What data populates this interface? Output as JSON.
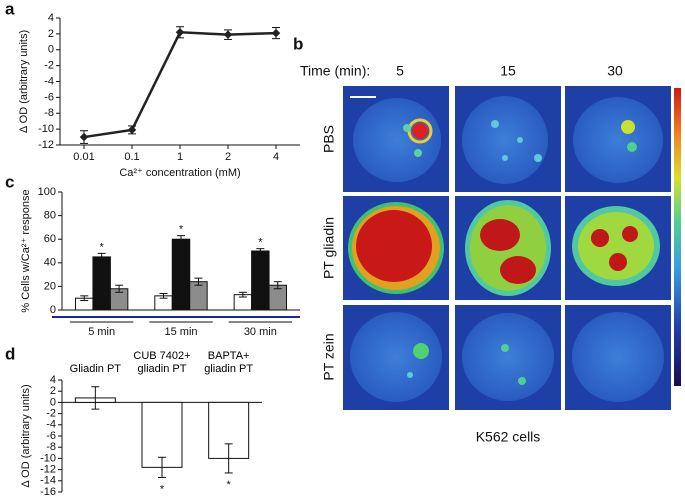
{
  "chart_data": [
    {
      "type": "line",
      "label": "a",
      "x_label": "Ca²⁺ concentration (mM)",
      "y_label": "Δ OD (arbitrary units)",
      "categories": [
        "0.01",
        "0.1",
        "1",
        "2",
        "4"
      ],
      "values": [
        -11,
        -10.1,
        2.2,
        1.9,
        2.1
      ],
      "errors": [
        0.8,
        0.5,
        0.7,
        0.6,
        0.7
      ],
      "color": "#222222",
      "ylim": [
        -12,
        4
      ],
      "yticks": [
        -12,
        -10,
        -8,
        -6,
        -4,
        -2,
        0,
        2,
        4
      ]
    },
    {
      "type": "bar",
      "label": "c",
      "y_label": "% Cells w/Ca²⁺ response",
      "categories": [
        "5 min",
        "15 min",
        "30 min"
      ],
      "series": [
        {
          "color": "#ffffff",
          "values": [
            10,
            12,
            13
          ],
          "errors": [
            2,
            2,
            2
          ]
        },
        {
          "color": "#111111",
          "values": [
            45,
            60,
            50
          ],
          "errors": [
            3,
            3,
            2
          ],
          "marks": [
            "*",
            "*",
            "*"
          ]
        },
        {
          "color": "#8c8c8c",
          "values": [
            18,
            24,
            21
          ],
          "errors": [
            3,
            3,
            3
          ]
        }
      ],
      "ylim": [
        0,
        100
      ],
      "yticks": [
        0,
        20,
        40,
        60,
        80,
        100
      ]
    },
    {
      "type": "bar",
      "label": "d",
      "y_label": "Δ OD (arbitrary units)",
      "categories": [
        "Gliadin PT",
        "CUB 7402+\ngliadin PT",
        "BAPTA+\ngliadin PT"
      ],
      "series": [
        {
          "color": "#ffffff",
          "values": [
            0.8,
            -11.6,
            -10
          ],
          "errors": [
            2,
            1.8,
            2.6
          ],
          "marks": [
            null,
            "*",
            "*"
          ],
          "marks_below": true
        }
      ],
      "ylim": [
        -16,
        4
      ],
      "yticks": [
        -16,
        -14,
        -12,
        -10,
        -8,
        -6,
        -4,
        -2,
        0,
        2,
        4
      ]
    }
  ],
  "panel_b": {
    "label": "b",
    "time_label": "Time (min):",
    "columns": [
      "5",
      "15",
      "30"
    ],
    "rows": [
      "PBS",
      "PT gliadin",
      "PT zein"
    ],
    "footer": "K562 cells"
  }
}
